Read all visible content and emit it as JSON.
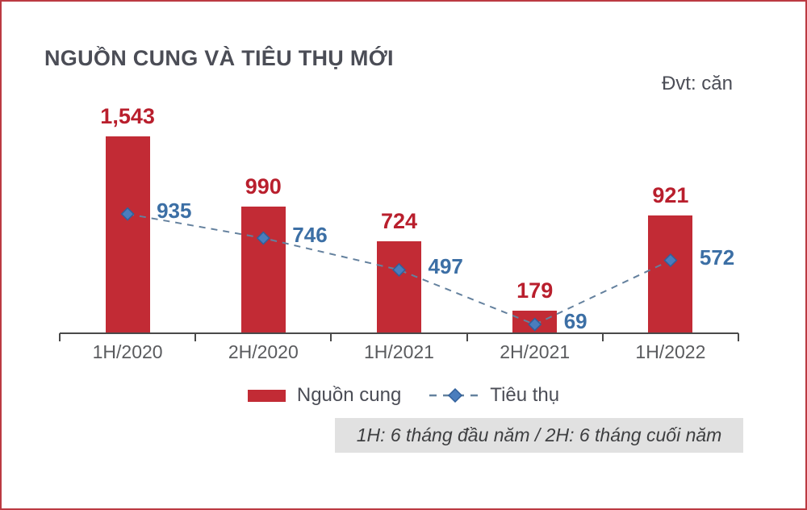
{
  "card": {
    "title": "NGUỒN CUNG VÀ TIÊU THỤ MỚI",
    "unit_label": "Đvt: căn",
    "footnote": "1H: 6 tháng đầu năm / 2H: 6 tháng cuối năm"
  },
  "legend": {
    "bar_label": "Nguồn cung",
    "line_label": "Tiêu thụ"
  },
  "colors": {
    "card_border": "#bb3a42",
    "heading_text": "#4b4d56",
    "bar": "#c22b35",
    "bar_value_text": "#b91f2d",
    "line": "#64819e",
    "marker_fill": "#4a7dbd",
    "marker_stroke": "#31609b",
    "line_value_text": "#3c6fa5",
    "axis": "#4a4a4a",
    "axis_label_text": "#5a5b5e",
    "footnote_bg": "#e1e1e1",
    "footnote_text": "#3e3f41"
  },
  "chart_data": {
    "type": "bar",
    "title": "NGUỒN CUNG VÀ TIÊU THỤ MỚI",
    "unit": "căn",
    "categories": [
      "1H/2020",
      "2H/2020",
      "1H/2021",
      "2H/2021",
      "1H/2022"
    ],
    "series": [
      {
        "name": "Nguồn cung",
        "type": "bar",
        "values": [
          1543,
          990,
          724,
          179,
          921
        ],
        "value_labels": [
          "1,543",
          "990",
          "724",
          "179",
          "921"
        ]
      },
      {
        "name": "Tiêu thụ",
        "type": "line",
        "values": [
          935,
          746,
          497,
          69,
          572
        ],
        "value_labels": [
          "935",
          "746",
          "497",
          "69",
          "572"
        ]
      }
    ],
    "ylim": [
      0,
      1560
    ],
    "grid": false,
    "legend_position": "bottom",
    "footnote": "1H: 6 tháng đầu năm / 2H: 6 tháng cuối năm"
  }
}
